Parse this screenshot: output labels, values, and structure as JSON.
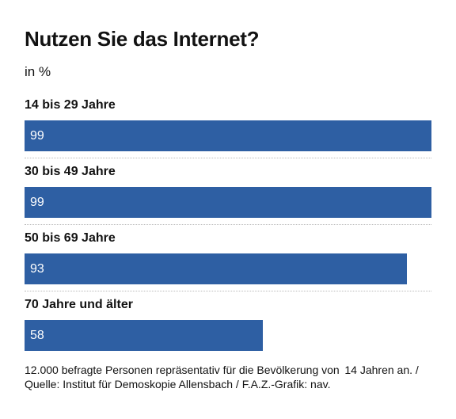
{
  "chart_data": {
    "type": "bar",
    "orientation": "horizontal",
    "title": "Nutzen Sie das Internet?",
    "subtitle": "in %",
    "categories": [
      "14 bis 29 Jahre",
      "30 bis 49 Jahre",
      "50 bis 69 Jahre",
      "70 Jahre und älter"
    ],
    "values": [
      99,
      99,
      93,
      58
    ],
    "xlim": [
      0,
      100
    ],
    "bar_color": "#2e5fa3",
    "grid": false,
    "legend": "none"
  },
  "footnote": "12.000 befragte Personen repräsentativ für die Bevölkerung von  14 Jahren an. / Quelle: Institut für Demoskopie Allensbach / F.A.Z.-Grafik: nav."
}
